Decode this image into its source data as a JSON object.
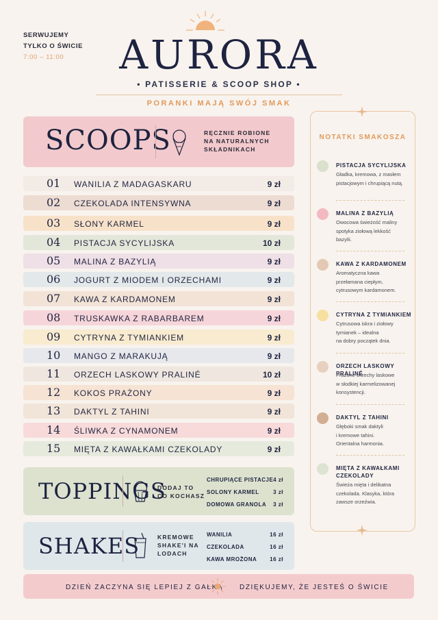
{
  "header": {
    "serve_line1": "SERWUJEMY",
    "serve_line2": "TYLKO O ŚWICIE",
    "hours": "7:00 – 11:00",
    "brand": "AURORA",
    "tagline": "• PATISSERIE & SCOOP SHOP •",
    "motto": "PORANKI MAJĄ SWÓJ SMAK"
  },
  "scoops": {
    "title": "SCOOPS",
    "note": [
      "RĘCZNIE ROBIONE",
      "NA NATURALNYCH",
      "SKŁADNIKACH"
    ],
    "icon": "ice-cream-cone-icon",
    "items": [
      {
        "num": "01",
        "name": "WANILIA Z MADAGASKARU",
        "price": "9 zł",
        "color": "#f3ebe5"
      },
      {
        "num": "02",
        "name": "CZEKOLADA INTENSYWNA",
        "price": "9 zł",
        "color": "#eddcd2"
      },
      {
        "num": "03",
        "name": "SŁONY KARMEL",
        "price": "9 zł",
        "color": "#f7e2c9"
      },
      {
        "num": "04",
        "name": "PISTACJA SYCYLIJSKA",
        "price": "10 zł",
        "color": "#e3e7d9"
      },
      {
        "num": "05",
        "name": "MALINA Z BAZYLIĄ",
        "price": "9 zł",
        "color": "#efdfe6"
      },
      {
        "num": "06",
        "name": "JOGURT Z MIODEM I ORZECHAMI",
        "price": "9 zł",
        "color": "#e3e8ea"
      },
      {
        "num": "07",
        "name": "KAWA Z KARDAMONEM",
        "price": "9 zł",
        "color": "#f2e3d6"
      },
      {
        "num": "08",
        "name": "TRUSKAWKA Z RABARBAREM",
        "price": "9 zł",
        "color": "#f6d5da"
      },
      {
        "num": "09",
        "name": "CYTRYNA Z TYMIANKIEM",
        "price": "9 zł",
        "color": "#f8ebcf"
      },
      {
        "num": "10",
        "name": "MANGO Z MARAKUJĄ",
        "price": "9 zł",
        "color": "#e6e8ec"
      },
      {
        "num": "11",
        "name": "ORZECH LASKOWY PRALINÉ",
        "price": "10 zł",
        "color": "#efe7df"
      },
      {
        "num": "12",
        "name": "KOKOS PRAŻONY",
        "price": "9 zł",
        "color": "#f6e3d4"
      },
      {
        "num": "13",
        "name": "DAKTYL Z TAHINI",
        "price": "9 zł",
        "color": "#f1e4d8"
      },
      {
        "num": "14",
        "name": "ŚLIWKA Z CYNAMONEM",
        "price": "9 zł",
        "color": "#f8dada"
      },
      {
        "num": "15",
        "name": "MIĘTA Z KAWAŁKAMI CZEKOLADY",
        "price": "9 zł",
        "color": "#e6eadd"
      }
    ]
  },
  "toppings": {
    "title": "TOPPINGS",
    "note": [
      "DODAJ TO",
      "CO KOCHASZ"
    ],
    "icon": "cupcake-icon",
    "items": [
      {
        "name": "CHRUPIĄCE PISTACJE",
        "price": "4 zł"
      },
      {
        "name": "SOLONY KARMEL",
        "price": "3 zł"
      },
      {
        "name": "DOMOWA GRANOLA",
        "price": "3 zł"
      }
    ]
  },
  "shakes": {
    "title": "SHAKES",
    "note": [
      "KREMOWE",
      "SHAKE'I NA",
      "LODACH"
    ],
    "icon": "milkshake-icon",
    "items": [
      {
        "name": "WANILIA",
        "price": "16 zł"
      },
      {
        "name": "CZEKOLADA",
        "price": "16 zł"
      },
      {
        "name": "KAWA MROŻONA",
        "price": "16 zł"
      }
    ]
  },
  "notes": {
    "title": "NOTATKI SMAKOSZA",
    "items": [
      {
        "title": "PISTACJA SYCYLIJSKA",
        "desc": [
          "Gładka, kremowa, z masłem",
          "pistacjowym i chrupiącą nutą."
        ],
        "color": "#d9e0cc"
      },
      {
        "title": "MALINA Z BAZYLIĄ",
        "desc": [
          "Owocowa świeżość maliny",
          "spotyka ziołową lekkość",
          "bazylii."
        ],
        "color": "#f3b9c0"
      },
      {
        "title": "KAWA Z KARDAMONEM",
        "desc": [
          "Aromatyczna kawa",
          "przełamana ciepłym,",
          "cytrusowym kardamonem."
        ],
        "color": "#e3c9b3"
      },
      {
        "title": "CYTRYNA Z TYMIANKIEM",
        "desc": [
          "Cytrusowa iskra i ziołowy",
          "tymianek – idealna",
          "na dobry początek dnia."
        ],
        "color": "#f5e0a0"
      },
      {
        "title": "ORZECH LASKOWY PRALINÉ",
        "desc": [
          "Prażone orzechy laskowe",
          "w słodkiej karmelizowanej",
          "konsystencji."
        ],
        "color": "#e8d0c0"
      },
      {
        "title": "DAKTYL Z TAHINI",
        "desc": [
          "Głęboki smak daktyli",
          "i kremowe tahini.",
          "Orientalna harmonia."
        ],
        "color": "#d2ae92"
      },
      {
        "title": "MIĘTA Z KAWAŁKAMI CZEKOLADY",
        "desc": [
          "Świeża mięta i delikatna",
          "czekolada. Klasyka, która",
          "zawsze orzeźwia."
        ],
        "color": "#dde3d3"
      }
    ]
  },
  "footer": {
    "left": "DZIEŃ ZACZYNA SIĘ LEPIEJ Z GAŁKĄ",
    "right": "DZIĘKUJEMY, ŻE JESTEŚ O ŚWICIE"
  },
  "colors": {
    "background": "#f8f3ee",
    "navy": "#1d2340",
    "accent": "#e09a5c",
    "scoops_band": "#f2c9cc",
    "toppings_band": "#dde2cf",
    "shakes_band": "#dfe7ea",
    "footer_band": "#f4cbcd"
  }
}
